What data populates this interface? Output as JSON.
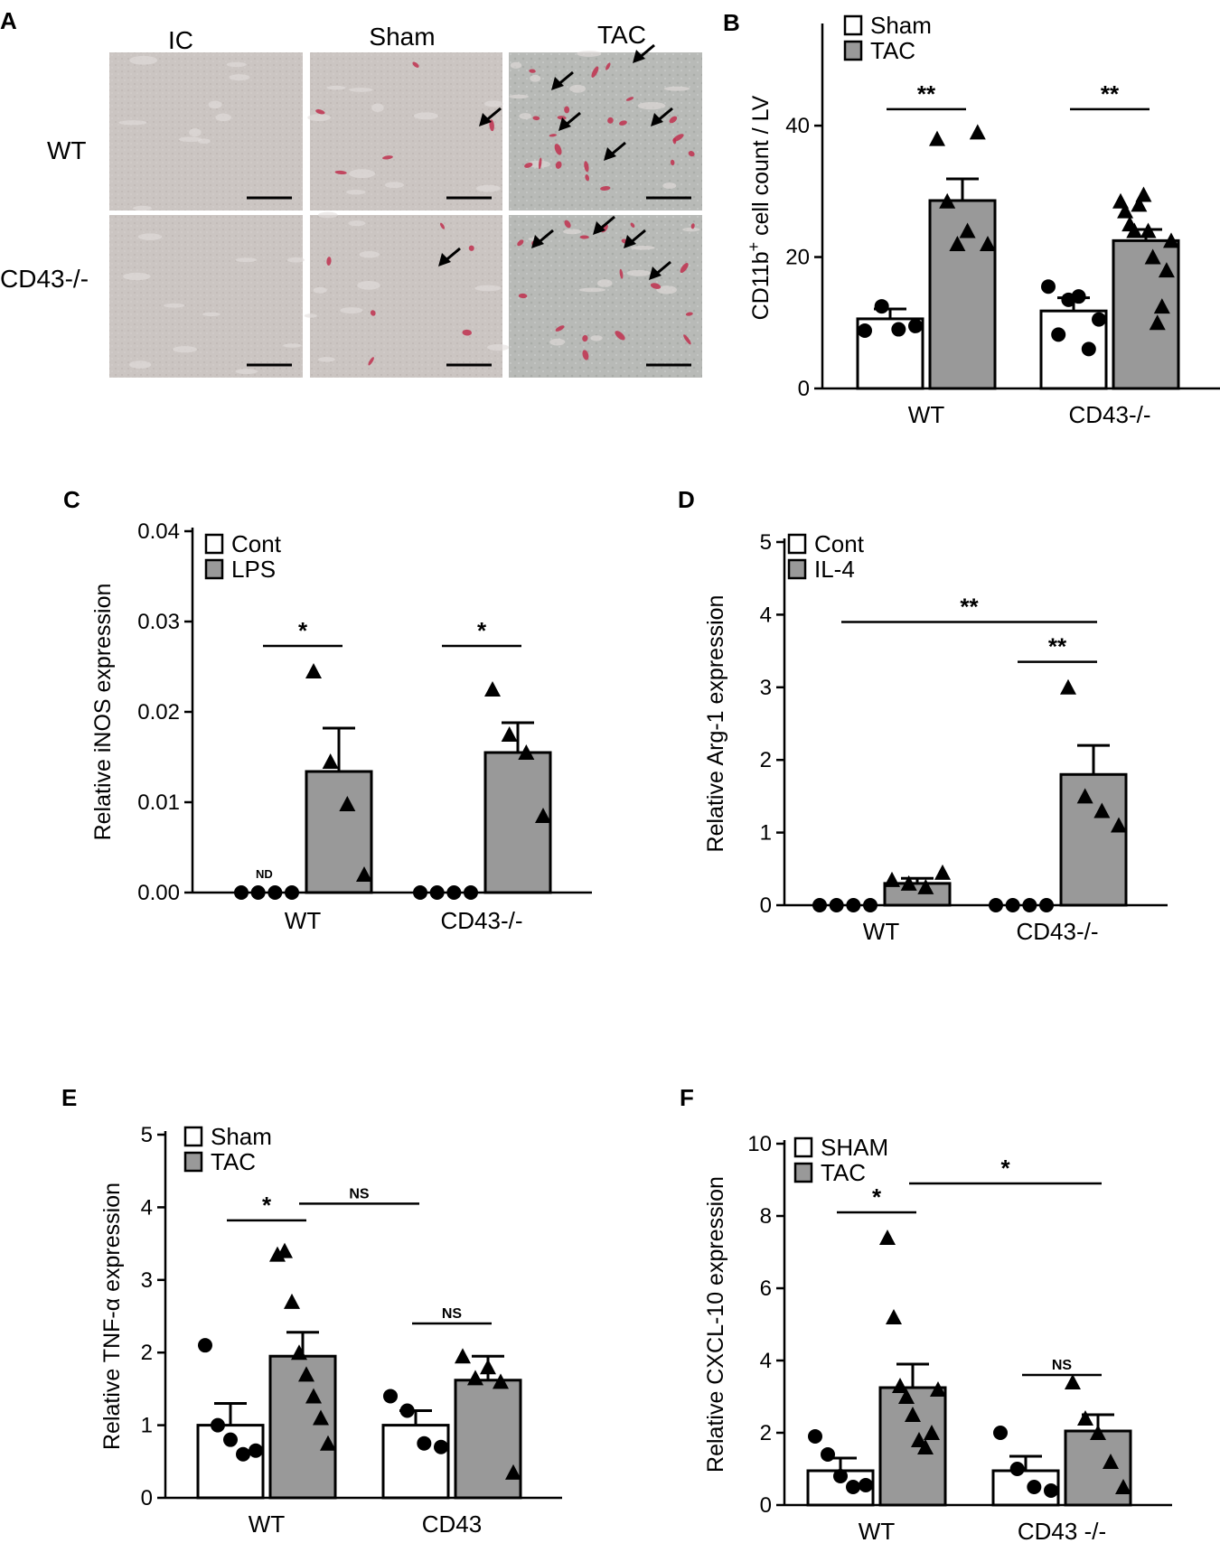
{
  "panel_a": {
    "label": "A",
    "columns": [
      "IC",
      "Sham",
      "TAC"
    ],
    "rows": [
      "WT",
      "CD43-/-"
    ],
    "colors": {
      "tissue": "#c9c3c0",
      "tissue_tac": "#b9bbb8",
      "stain": "#c0304f",
      "scale_bar": "#000000"
    }
  },
  "chart_data": [
    {
      "panel": "B",
      "type": "bar",
      "categories": [
        "WT",
        "CD43-/-"
      ],
      "ylabel": "CD11b⁺ cell count / LV",
      "ylim": [
        0,
        55
      ],
      "yticks": [
        0,
        20,
        40
      ],
      "legend": [
        "Sham",
        "TAC"
      ],
      "legend_position": "top-left",
      "grid": false,
      "series": [
        {
          "name": "Sham",
          "color": "#ffffff",
          "marker": "circle",
          "values": [
            10.6,
            11.8
          ],
          "errors": [
            1.5,
            2.0
          ],
          "points": [
            [
              8.8,
              12.5,
              9.0,
              9.5
            ],
            [
              15.5,
              8.2,
              13.5,
              14.0,
              6.0,
              10.5
            ]
          ]
        },
        {
          "name": "TAC",
          "color": "#999999",
          "marker": "triangle",
          "values": [
            28.6,
            22.5
          ],
          "errors": [
            3.3,
            1.7
          ],
          "points": [
            [
              38.0,
              28.5,
              22.0,
              24.0,
              39.0,
              22.0
            ],
            [
              28.5,
              27.0,
              25.0,
              24.0,
              28.0,
              29.5,
              24.0,
              20.0,
              10.0,
              12.5,
              18.0,
              22.5
            ]
          ]
        }
      ],
      "significance": [
        {
          "text": "**",
          "from": [
            0,
            0
          ],
          "to": [
            0,
            1
          ],
          "y": 42.5
        },
        {
          "text": "**",
          "from": [
            1,
            0
          ],
          "to": [
            1,
            1
          ],
          "y": 42.5
        }
      ]
    },
    {
      "panel": "C",
      "type": "bar",
      "categories": [
        "WT",
        "CD43-/-"
      ],
      "ylabel": "Relative iNOS expression",
      "ylim": [
        0,
        0.04
      ],
      "yticks": [
        "0.00",
        "0.01",
        "0.02",
        "0.03",
        "0.04"
      ],
      "legend": [
        "Cont",
        "LPS"
      ],
      "legend_position": "top-left",
      "grid": false,
      "annotations": [
        {
          "text": "ND",
          "group": 0,
          "series": 0
        }
      ],
      "series": [
        {
          "name": "Cont",
          "color": "#ffffff",
          "marker": "circle",
          "values": [
            0,
            0
          ],
          "errors": [
            0,
            0
          ],
          "points": [
            [
              0,
              0,
              0,
              0
            ],
            [
              0,
              0,
              0,
              0
            ]
          ]
        },
        {
          "name": "LPS",
          "color": "#999999",
          "marker": "triangle",
          "values": [
            0.0134,
            0.0155
          ],
          "errors": [
            0.0048,
            0.0033
          ],
          "points": [
            [
              0.0245,
              0.0145,
              0.0098,
              0.002
            ],
            [
              0.0225,
              0.0175,
              0.0155,
              0.0085
            ]
          ]
        }
      ],
      "significance": [
        {
          "text": "*",
          "from": [
            0,
            0
          ],
          "to": [
            0,
            1
          ],
          "y": 0.0273
        },
        {
          "text": "*",
          "from": [
            1,
            0
          ],
          "to": [
            1,
            1
          ],
          "y": 0.0273
        }
      ]
    },
    {
      "panel": "D",
      "type": "bar",
      "categories": [
        "WT",
        "CD43-/-"
      ],
      "ylabel": "Relative Arg-1 expression",
      "ylim": [
        0,
        5
      ],
      "yticks": [
        0,
        1,
        2,
        3,
        4,
        5
      ],
      "legend": [
        "Cont",
        "IL-4"
      ],
      "legend_position": "top-left",
      "grid": false,
      "series": [
        {
          "name": "Cont",
          "color": "#ffffff",
          "marker": "circle",
          "values": [
            0,
            0
          ],
          "errors": [
            0,
            0
          ],
          "points": [
            [
              0,
              0,
              0,
              0
            ],
            [
              0,
              0,
              0,
              0
            ]
          ]
        },
        {
          "name": "IL-4",
          "color": "#999999",
          "marker": "triangle",
          "values": [
            0.3,
            1.8
          ],
          "errors": [
            0.07,
            0.4
          ],
          "points": [
            [
              0.35,
              0.3,
              0.25,
              0.45
            ],
            [
              3.0,
              1.5,
              1.3,
              1.1
            ]
          ]
        }
      ],
      "significance": [
        {
          "text": "**",
          "from": [
            0,
            0
          ],
          "to": [
            1,
            1
          ],
          "y": 3.9
        },
        {
          "text": "**",
          "from": [
            1,
            0
          ],
          "to": [
            1,
            1
          ],
          "y": 3.35
        }
      ]
    },
    {
      "panel": "E",
      "type": "bar",
      "categories": [
        "WT",
        "CD43"
      ],
      "ylabel": "Relative TNF-α expression",
      "ylim": [
        0,
        5
      ],
      "yticks": [
        0,
        1,
        2,
        3,
        4,
        5
      ],
      "legend": [
        "Sham",
        "TAC"
      ],
      "legend_position": "top-left",
      "grid": false,
      "series": [
        {
          "name": "Sham",
          "color": "#ffffff",
          "marker": "circle",
          "values": [
            1.0,
            1.0
          ],
          "errors": [
            0.3,
            0.2
          ],
          "points": [
            [
              2.1,
              1.0,
              0.8,
              0.6,
              0.65
            ],
            [
              1.4,
              1.2,
              0.75,
              0.7
            ]
          ]
        },
        {
          "name": "TAC",
          "color": "#999999",
          "marker": "triangle",
          "values": [
            1.95,
            1.62
          ],
          "errors": [
            0.33,
            0.33
          ],
          "points": [
            [
              3.35,
              3.4,
              2.7,
              2.0,
              1.7,
              1.4,
              1.1,
              0.75
            ],
            [
              1.95,
              1.65,
              1.8,
              1.6,
              0.35
            ]
          ]
        }
      ],
      "significance": [
        {
          "text": "*",
          "from": [
            0,
            0
          ],
          "to": [
            0,
            1
          ],
          "y": 3.82,
          "size": "large"
        },
        {
          "text": "NS",
          "from": [
            0,
            1
          ],
          "to": [
            1,
            0
          ],
          "y": 4.05,
          "size": "small"
        },
        {
          "text": "NS",
          "from": [
            1,
            0
          ],
          "to": [
            1,
            1
          ],
          "y": 2.4,
          "size": "small"
        }
      ]
    },
    {
      "panel": "F",
      "type": "bar",
      "categories": [
        "WT",
        "CD43 -/-"
      ],
      "ylabel": "Relative CXCL-10 expression",
      "ylim": [
        0,
        10
      ],
      "yticks": [
        0,
        2,
        4,
        6,
        8,
        10
      ],
      "legend": [
        "SHAM",
        "TAC"
      ],
      "legend_position": "top-left",
      "grid": false,
      "series": [
        {
          "name": "SHAM",
          "color": "#ffffff",
          "marker": "circle",
          "values": [
            0.95,
            0.95
          ],
          "errors": [
            0.35,
            0.4
          ],
          "points": [
            [
              1.9,
              1.4,
              0.8,
              0.5,
              0.55
            ],
            [
              2.0,
              1.0,
              0.5,
              0.4
            ]
          ]
        },
        {
          "name": "TAC",
          "color": "#999999",
          "marker": "triangle",
          "values": [
            3.25,
            2.05
          ],
          "errors": [
            0.65,
            0.45
          ],
          "points": [
            [
              7.4,
              5.2,
              3.3,
              3.0,
              2.5,
              1.8,
              1.6,
              2.0,
              3.2
            ],
            [
              3.4,
              2.4,
              2.0,
              1.2,
              0.5
            ]
          ]
        }
      ],
      "significance": [
        {
          "text": "*",
          "from": [
            0,
            0
          ],
          "to": [
            0,
            1
          ],
          "y": 8.1,
          "size": "large"
        },
        {
          "text": "*",
          "from": [
            0,
            1
          ],
          "to": [
            1,
            1
          ],
          "y": 8.9,
          "size": "large"
        },
        {
          "text": "NS",
          "from": [
            1,
            0
          ],
          "to": [
            1,
            1
          ],
          "y": 3.6,
          "size": "small"
        }
      ]
    }
  ]
}
